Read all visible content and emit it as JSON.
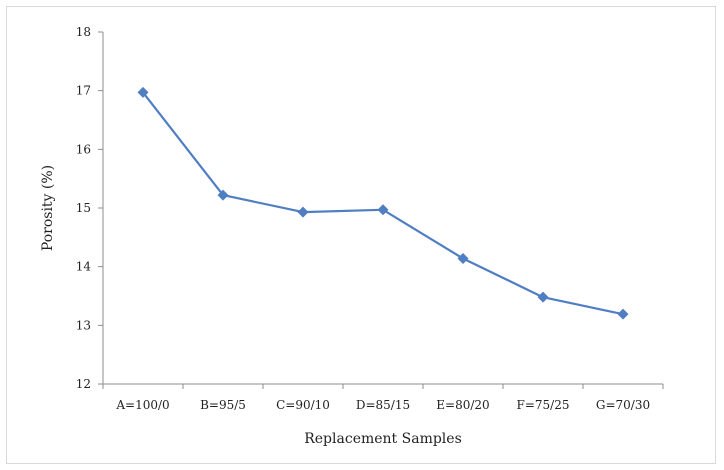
{
  "chart_data": {
    "type": "line",
    "title": "",
    "xlabel": "Replacement Samples",
    "ylabel": "Porosity (%)",
    "categories": [
      "A=100/0",
      "B=95/5",
      "C=90/10",
      "D=85/15",
      "E=80/20",
      "F=75/25",
      "G=70/30"
    ],
    "series": [
      {
        "values": [
          16.97,
          15.22,
          14.93,
          14.97,
          14.14,
          13.48,
          13.19
        ],
        "color": "#4f7ec2",
        "marker": "diamond"
      }
    ],
    "ylim": [
      12,
      18
    ],
    "yticks": [
      12,
      13,
      14,
      15,
      16,
      17,
      18
    ],
    "grid": false,
    "legend": "none"
  }
}
